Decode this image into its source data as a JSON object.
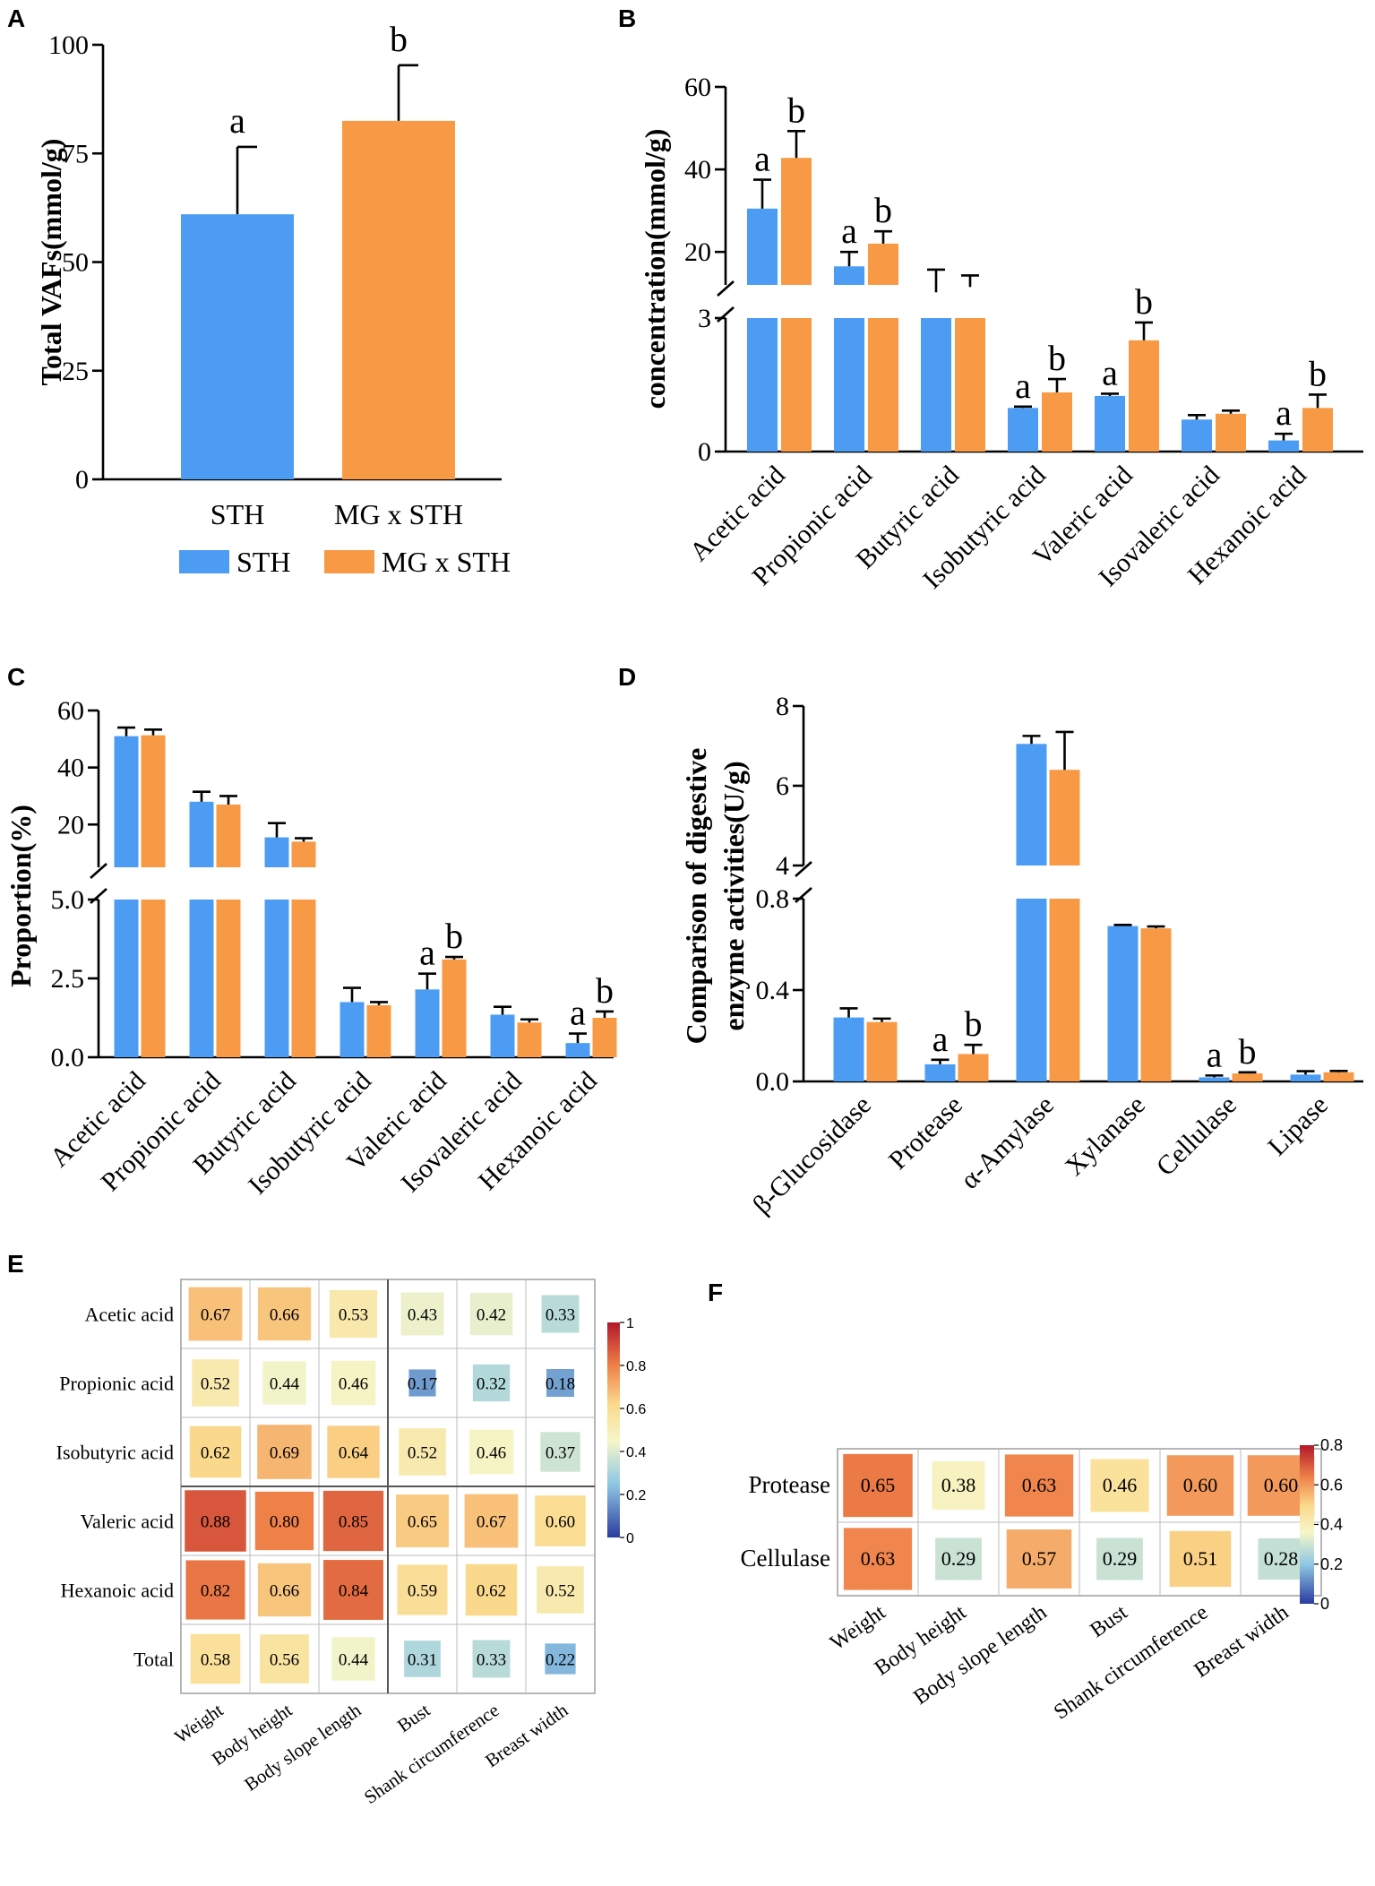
{
  "colors": {
    "sth": "#4d9cf4",
    "mg": "#f89a45"
  },
  "panel_labels": [
    "A",
    "B",
    "C",
    "D",
    "E",
    "F"
  ],
  "legend": {
    "sth": "STH",
    "mg": "MG x STH"
  },
  "chart_data": [
    {
      "id": "A",
      "type": "bar",
      "ylabel": "Total VAFs(mmol/g)",
      "ylim": [
        0,
        100
      ],
      "yticks": [
        "0",
        "25",
        "50",
        "75",
        "100"
      ],
      "categories": [
        "STH",
        "MG x STH"
      ],
      "values": [
        61,
        82.5
      ],
      "errors": [
        15.5,
        12.8
      ],
      "letters": [
        "a",
        "b"
      ]
    },
    {
      "id": "B",
      "type": "bar",
      "ylabel": "concentration(mmol/g)",
      "axis_break": {
        "lower": [
          0,
          3
        ],
        "upper": [
          12,
          60
        ]
      },
      "yticks_lower": [
        "0",
        "3"
      ],
      "yticks_upper": [
        "20",
        "40",
        "60"
      ],
      "categories": [
        "Acetic acid",
        "Propionic acid",
        "Butyric acid",
        "Isobutyric acid",
        "Valeric acid",
        "Isovaleric acid",
        "Hexanoic acid"
      ],
      "series": [
        {
          "name": "STH",
          "values": [
            30.5,
            16.5,
            10.2,
            0.98,
            1.25,
            0.72,
            0.25
          ],
          "errors": [
            7,
            3.5,
            5.5,
            0.03,
            0.05,
            0.1,
            0.15
          ]
        },
        {
          "name": "MG x STH",
          "values": [
            42.8,
            22,
            11.5,
            1.33,
            2.5,
            0.85,
            0.98
          ],
          "errors": [
            6.5,
            3,
            2.8,
            0.3,
            0.4,
            0.07,
            0.3
          ]
        }
      ],
      "letters": [
        [
          "a",
          "b"
        ],
        [
          "a",
          "b"
        ],
        [
          "",
          ""
        ],
        [
          "a",
          "b"
        ],
        [
          "a",
          "b"
        ],
        [
          "",
          ""
        ],
        [
          "a",
          "b"
        ]
      ]
    },
    {
      "id": "C",
      "type": "bar",
      "ylabel": "Proportion(%)",
      "axis_break": {
        "lower": [
          0,
          5
        ],
        "upper": [
          5,
          60
        ]
      },
      "yticks_lower": [
        "0.0",
        "2.5",
        "5.0"
      ],
      "yticks_upper": [
        "20",
        "40",
        "60"
      ],
      "categories": [
        "Acetic acid",
        "Propionic acid",
        "Butyric acid",
        "Isobutyric acid",
        "Valeric acid",
        "Isovaleric acid",
        "Hexanoic acid"
      ],
      "series": [
        {
          "name": "STH",
          "values": [
            51,
            28,
            15.5,
            1.75,
            2.15,
            1.35,
            0.45
          ],
          "errors": [
            3,
            3.5,
            5,
            0.45,
            0.5,
            0.25,
            0.3
          ]
        },
        {
          "name": "MG x STH",
          "values": [
            51.3,
            27,
            14,
            1.65,
            3.1,
            1.1,
            1.25
          ],
          "errors": [
            2,
            3,
            1.2,
            0.1,
            0.08,
            0.1,
            0.2
          ]
        }
      ],
      "letters": [
        [
          "",
          ""
        ],
        [
          "",
          ""
        ],
        [
          "",
          ""
        ],
        [
          "",
          ""
        ],
        [
          "a",
          "b"
        ],
        [
          "",
          ""
        ],
        [
          "a",
          "b"
        ]
      ]
    },
    {
      "id": "D",
      "type": "bar",
      "ylabel_line1": "Comparison of digestive",
      "ylabel_line2": "enzyme activities(U/g)",
      "axis_break": {
        "lower": [
          0,
          0.8
        ],
        "upper": [
          4,
          8
        ]
      },
      "yticks_lower": [
        "0.0",
        "0.4",
        "0.8"
      ],
      "yticks_upper": [
        "4",
        "6",
        "8"
      ],
      "categories": [
        "β-Glucosidase",
        "Protease",
        "α-Amylase",
        "Xylanase",
        "Cellulase",
        "Lipase"
      ],
      "series": [
        {
          "name": "STH",
          "values": [
            0.28,
            0.075,
            7.05,
            0.68,
            0.018,
            0.03
          ],
          "errors": [
            0.04,
            0.02,
            0.2,
            0.005,
            0.008,
            0.015
          ]
        },
        {
          "name": "MG x STH",
          "values": [
            0.26,
            0.12,
            6.4,
            0.67,
            0.035,
            0.04
          ],
          "errors": [
            0.015,
            0.04,
            0.95,
            0.008,
            0.005,
            0.006
          ]
        }
      ],
      "letters": [
        [
          "",
          ""
        ],
        [
          "a",
          "b"
        ],
        [
          "",
          ""
        ],
        [
          "",
          ""
        ],
        [
          "a",
          "b"
        ],
        [
          "",
          ""
        ]
      ]
    },
    {
      "id": "E",
      "type": "heatmap",
      "rows": [
        "Acetic acid",
        "Propionic acid",
        "Isobutyric acid",
        "Valeric acid",
        "Hexanoic acid",
        "Total"
      ],
      "cols": [
        "Weight",
        "Body height",
        "Body slope length",
        "Bust",
        "Shank circumference",
        "Breast width"
      ],
      "values": [
        [
          0.67,
          0.66,
          0.53,
          0.43,
          0.42,
          0.33
        ],
        [
          0.52,
          0.44,
          0.46,
          0.17,
          0.32,
          0.18
        ],
        [
          0.62,
          0.69,
          0.64,
          0.52,
          0.46,
          0.37
        ],
        [
          0.88,
          0.8,
          0.85,
          0.65,
          0.67,
          0.6
        ],
        [
          0.82,
          0.66,
          0.84,
          0.59,
          0.62,
          0.52
        ],
        [
          0.58,
          0.56,
          0.44,
          0.31,
          0.33,
          0.22
        ]
      ],
      "labels": [
        [
          "0.67",
          "0.66",
          "0.53",
          "0.43",
          "0.42",
          "0.33"
        ],
        [
          "0.52",
          "0.44",
          "0.46",
          "0.17",
          "0.32",
          "0.18"
        ],
        [
          "0.62",
          "0.69",
          "0.64",
          "0.52",
          "0.46",
          "0.37"
        ],
        [
          "0.88",
          "0.80",
          "0.85",
          "0.65",
          "0.67",
          "0.60"
        ],
        [
          "0.82",
          "0.66",
          "0.84",
          "0.59",
          "0.62",
          "0.52"
        ],
        [
          "0.58",
          "0.56",
          "0.44",
          "0.31",
          "0.33",
          "0.22"
        ]
      ],
      "colorbar": {
        "min": 0,
        "max": 1,
        "ticks": [
          "0",
          "0.2",
          "0.4",
          "0.6",
          "0.8",
          "1"
        ]
      }
    },
    {
      "id": "F",
      "type": "heatmap",
      "rows": [
        "Protease",
        "Cellulase"
      ],
      "cols": [
        "Weight",
        "Body height",
        "Body slope length",
        "Bust",
        "Shank circumference",
        "Breast width"
      ],
      "values": [
        [
          0.65,
          0.38,
          0.63,
          0.46,
          0.6,
          0.6
        ],
        [
          0.63,
          0.29,
          0.57,
          0.29,
          0.51,
          0.28
        ]
      ],
      "labels": [
        [
          "0.65",
          "0.38",
          "0.63",
          "0.46",
          "0.60",
          "0.60"
        ],
        [
          "0.63",
          "0.29",
          "0.57",
          "0.29",
          "0.51",
          "0.28"
        ]
      ],
      "colorbar": {
        "min": 0,
        "max": 0.8,
        "ticks": [
          "0",
          "0.2",
          "0.4",
          "0.6",
          "0.8"
        ]
      }
    }
  ]
}
